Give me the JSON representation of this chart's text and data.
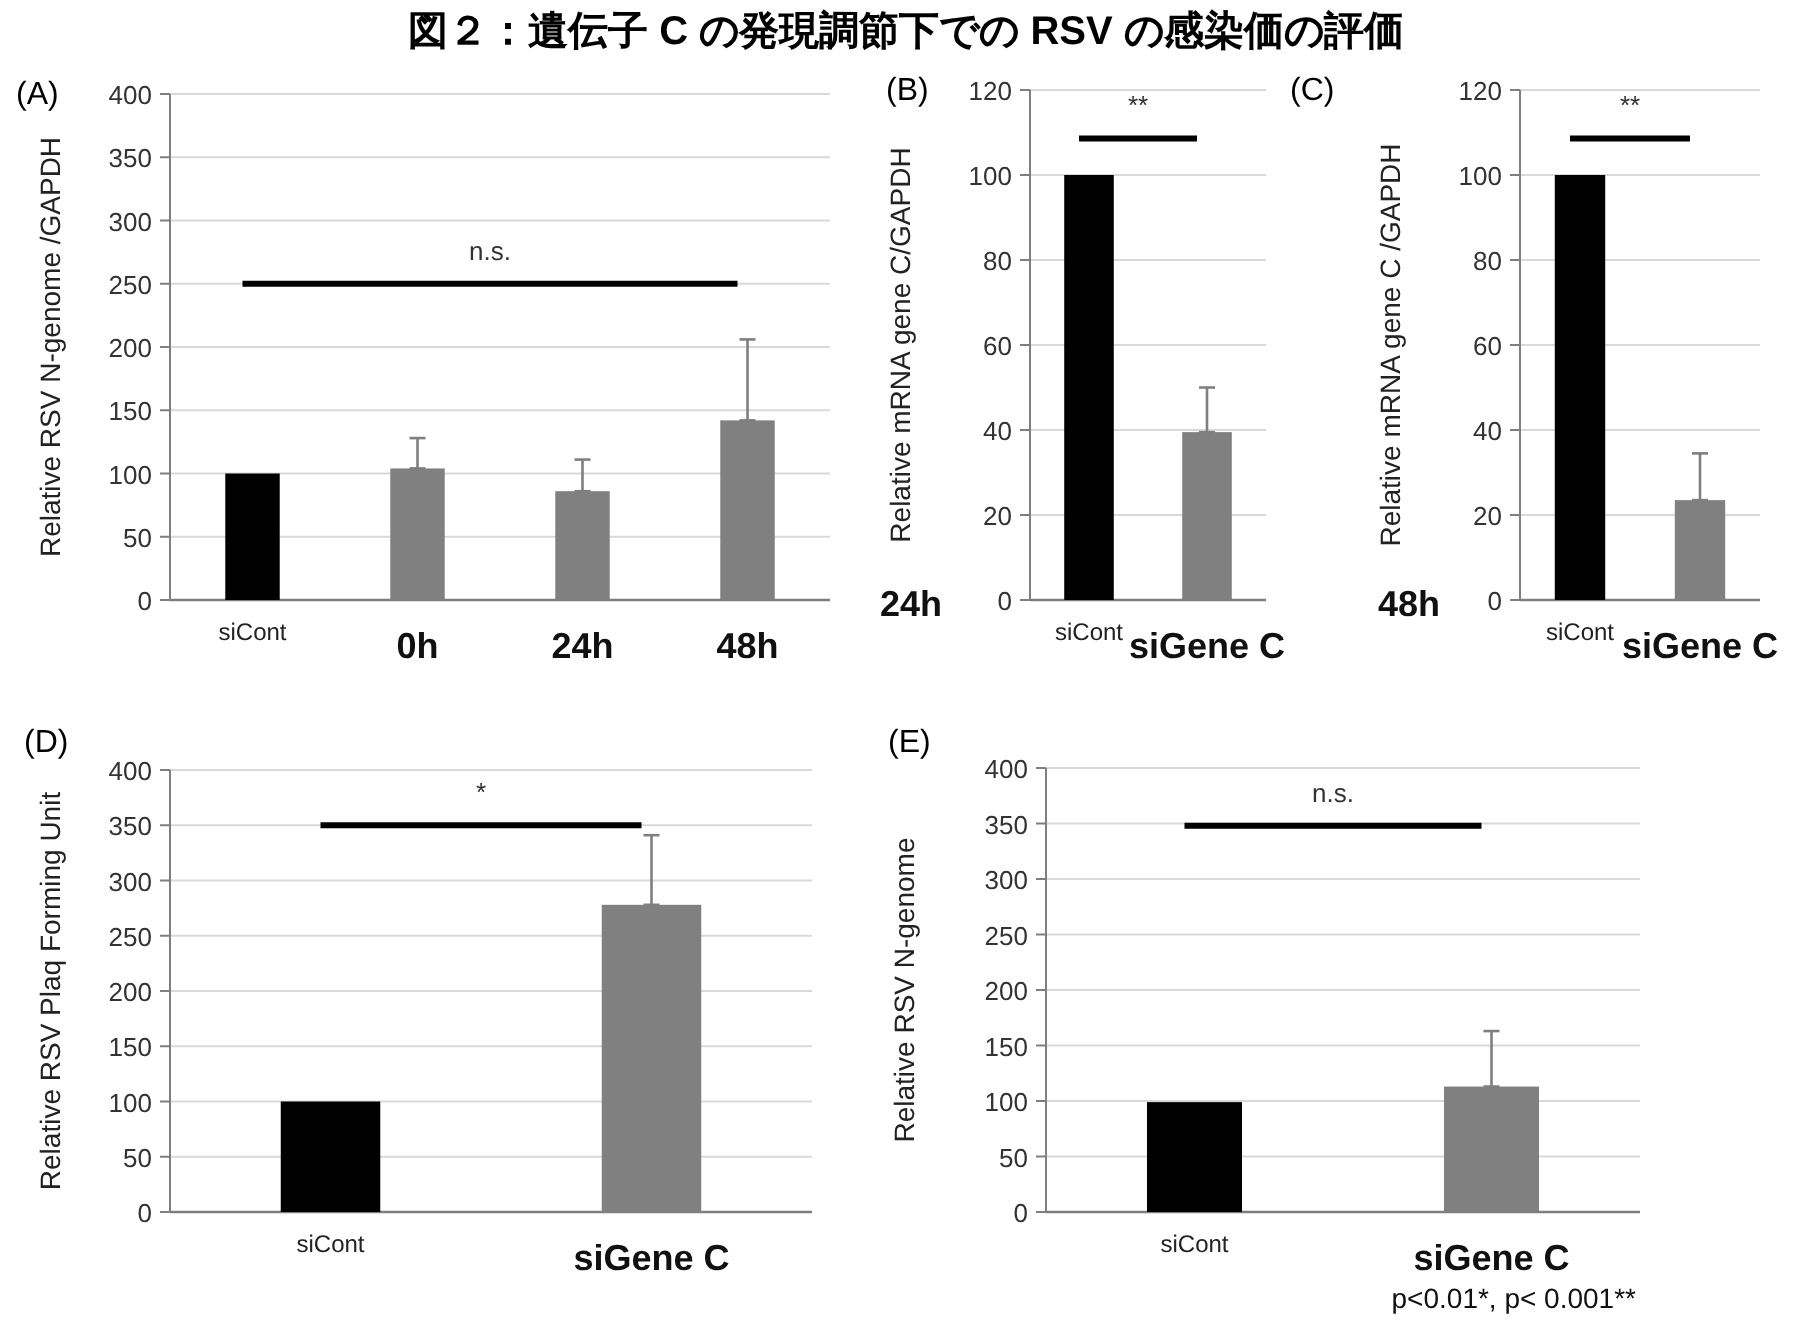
{
  "chart_data": [
    {
      "type": "bar",
      "title": "図２：遺伝子 C の発現調節下での RSV の感染価の評価",
      "ylabel": "Relative RSV N-genome /GAPDH",
      "categories": [
        "siCont",
        "0h",
        "24h",
        "48h"
      ],
      "values": [
        100,
        104,
        86,
        142
      ],
      "colors": [
        "#000000",
        "#808080",
        "#808080",
        "#808080"
      ],
      "errors": [
        null,
        [
          104,
          128
        ],
        [
          86,
          111
        ],
        [
          142,
          206
        ]
      ],
      "ylim": [
        0,
        400
      ],
      "yticks": [
        0,
        50,
        100,
        150,
        200,
        250,
        300,
        350,
        400
      ],
      "grid": "y",
      "annotations": [
        "(A)",
        "n.s."
      ]
    },
    {
      "type": "bar",
      "ylabel": "Relative mRNA  gene C/GAPDH",
      "categories": [
        "siCont",
        "siGene C"
      ],
      "values": [
        100,
        39.5
      ],
      "colors": [
        "#000000",
        "#808080"
      ],
      "errors": [
        null,
        [
          39.5,
          50
        ]
      ],
      "ylim": [
        0,
        120
      ],
      "yticks": [
        0,
        20,
        40,
        60,
        80,
        100,
        120
      ],
      "grid": "y",
      "annotations": [
        "(B)",
        "**",
        "24h"
      ]
    },
    {
      "type": "bar",
      "ylabel": "Relative mRNA gene C /GAPDH",
      "categories": [
        "siCont",
        "siGene C"
      ],
      "values": [
        100,
        23.5
      ],
      "colors": [
        "#000000",
        "#808080"
      ],
      "errors": [
        null,
        [
          23.5,
          34.5
        ]
      ],
      "ylim": [
        0,
        120
      ],
      "yticks": [
        0,
        20,
        40,
        60,
        80,
        100,
        120
      ],
      "grid": "y",
      "annotations": [
        "(C)",
        "**",
        "48h"
      ]
    },
    {
      "type": "bar",
      "ylabel": "Relative RSV Plaq Forming Unit",
      "categories": [
        "siCont",
        "siGene C"
      ],
      "values": [
        100,
        278
      ],
      "colors": [
        "#000000",
        "#808080"
      ],
      "errors": [
        null,
        [
          278,
          341
        ]
      ],
      "ylim": [
        0,
        400
      ],
      "yticks": [
        0,
        50,
        100,
        150,
        200,
        250,
        300,
        350,
        400
      ],
      "grid": "y",
      "annotations": [
        "(D)",
        "*"
      ]
    },
    {
      "type": "bar",
      "ylabel": "Relative RSV N-genome",
      "categories": [
        "siCont",
        "siGene C"
      ],
      "values": [
        99,
        113
      ],
      "colors": [
        "#000000",
        "#808080"
      ],
      "errors": [
        null,
        [
          113,
          163
        ]
      ],
      "ylim": [
        0,
        400
      ],
      "yticks": [
        0,
        50,
        100,
        150,
        200,
        250,
        300,
        350,
        400
      ],
      "grid": "y",
      "annotations": [
        "(E)",
        "n.s.",
        "p<0.01*, p< 0.001**"
      ]
    }
  ]
}
